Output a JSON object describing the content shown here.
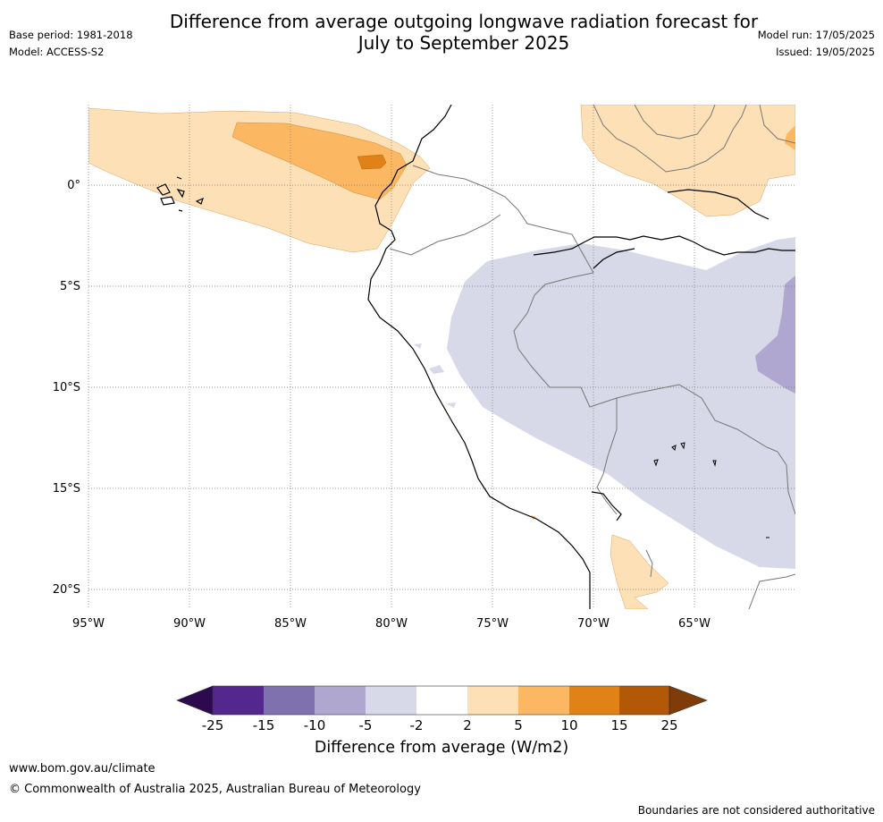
{
  "title_line1": "Difference from average outgoing longwave radiation forecast for",
  "title_line2": "July to September 2025",
  "base_period": "Base period: 1981-2018",
  "model": "Model: ACCESS-S2",
  "model_run": "Model run: 17/05/2025",
  "issued": "Issued: 19/05/2025",
  "map": {
    "lon_labels": [
      "95°W",
      "90°W",
      "85°W",
      "80°W",
      "75°W",
      "70°W",
      "65°W"
    ],
    "lat_labels": [
      "0°",
      "5°S",
      "10°S",
      "15°S",
      "20°S"
    ]
  },
  "colorbar": {
    "tick_labels": [
      "-25",
      "-15",
      "-10",
      "-5",
      "-2",
      "2",
      "5",
      "10",
      "15",
      "25"
    ],
    "title": "Difference from average (W/m2)",
    "colors": {
      "below_min": "#2d0a4e",
      "c_-25_-15": "#54278f",
      "c_-15_-10": "#7f71ad",
      "c_-10_-5": "#b0a7d0",
      "c_-5_-2": "#d7d8e8",
      "c_-2_2": "#ffffff",
      "c_2_5": "#fee0b6",
      "c_5_10": "#fbb762",
      "c_10_15": "#e08215",
      "c_15_25": "#b35806",
      "above_max": "#7f3b08"
    }
  },
  "footer": {
    "url": "www.bom.gov.au/climate",
    "copyright": "© Commonwealth of Australia 2025, Australian Bureau of Meteorology",
    "disclaimer": "Boundaries are not considered authoritative"
  }
}
